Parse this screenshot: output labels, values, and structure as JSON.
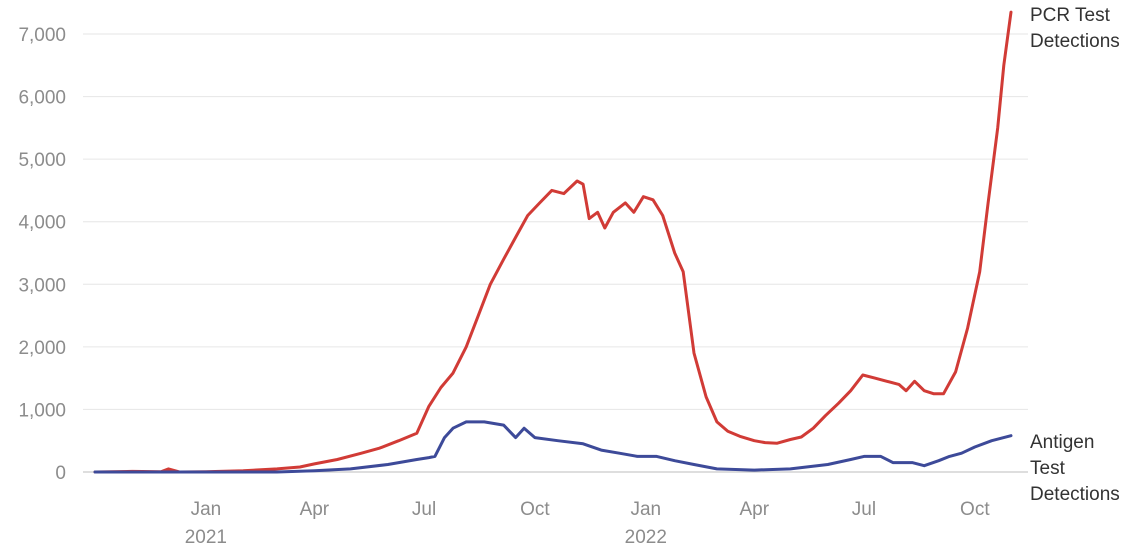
{
  "chart_data": {
    "type": "line",
    "title": "",
    "xlabel": "",
    "ylabel": "",
    "ylim": [
      0,
      7000
    ],
    "grid": "horizontal",
    "legend": "direct labels at right end of lines",
    "y_ticks": [
      "0",
      "1,000",
      "2,000",
      "3,000",
      "4,000",
      "5,000",
      "6,000",
      "7,000"
    ],
    "y_tick_values": [
      0,
      1000,
      2000,
      3000,
      4000,
      5000,
      6000,
      7000
    ],
    "x_ticks": [
      {
        "label": "Jan",
        "sub": "2021",
        "date": "2021-01-01"
      },
      {
        "label": "Apr",
        "sub": "",
        "date": "2021-04-01"
      },
      {
        "label": "Jul",
        "sub": "",
        "date": "2021-07-01"
      },
      {
        "label": "Oct",
        "sub": "",
        "date": "2021-10-01"
      },
      {
        "label": "Jan",
        "sub": "2022",
        "date": "2022-01-01"
      },
      {
        "label": "Apr",
        "sub": "",
        "date": "2022-04-01"
      },
      {
        "label": "Jul",
        "sub": "",
        "date": "2022-07-01"
      },
      {
        "label": "Oct",
        "sub": "",
        "date": "2022-10-01"
      }
    ],
    "x_range": [
      "2020-10-01",
      "2022-10-31"
    ],
    "series": [
      {
        "name": "PCR Test Detections",
        "label_lines": [
          "PCR Test",
          "Detections"
        ],
        "color": "#d13b36",
        "points": [
          [
            "2020-10-01",
            0
          ],
          [
            "2020-11-01",
            10
          ],
          [
            "2020-11-25",
            5
          ],
          [
            "2020-12-01",
            50
          ],
          [
            "2020-12-10",
            0
          ],
          [
            "2021-01-01",
            5
          ],
          [
            "2021-02-01",
            20
          ],
          [
            "2021-03-01",
            50
          ],
          [
            "2021-03-20",
            80
          ],
          [
            "2021-04-01",
            130
          ],
          [
            "2021-04-20",
            200
          ],
          [
            "2021-05-10",
            300
          ],
          [
            "2021-05-25",
            380
          ],
          [
            "2021-06-10",
            500
          ],
          [
            "2021-06-25",
            620
          ],
          [
            "2021-07-05",
            1050
          ],
          [
            "2021-07-15",
            1350
          ],
          [
            "2021-07-25",
            1580
          ],
          [
            "2021-08-05",
            2000
          ],
          [
            "2021-08-15",
            2500
          ],
          [
            "2021-08-25",
            3000
          ],
          [
            "2021-09-05",
            3400
          ],
          [
            "2021-09-15",
            3750
          ],
          [
            "2021-09-25",
            4100
          ],
          [
            "2021-10-05",
            4300
          ],
          [
            "2021-10-15",
            4500
          ],
          [
            "2021-10-25",
            4450
          ],
          [
            "2021-11-05",
            4650
          ],
          [
            "2021-11-10",
            4600
          ],
          [
            "2021-11-15",
            4050
          ],
          [
            "2021-11-22",
            4150
          ],
          [
            "2021-11-28",
            3900
          ],
          [
            "2021-12-05",
            4150
          ],
          [
            "2021-12-15",
            4300
          ],
          [
            "2021-12-22",
            4150
          ],
          [
            "2021-12-30",
            4400
          ],
          [
            "2022-01-07",
            4350
          ],
          [
            "2022-01-15",
            4100
          ],
          [
            "2022-01-25",
            3500
          ],
          [
            "2022-02-01",
            3200
          ],
          [
            "2022-02-10",
            1900
          ],
          [
            "2022-02-20",
            1200
          ],
          [
            "2022-03-01",
            800
          ],
          [
            "2022-03-10",
            650
          ],
          [
            "2022-03-20",
            570
          ],
          [
            "2022-04-01",
            500
          ],
          [
            "2022-04-10",
            470
          ],
          [
            "2022-04-20",
            460
          ],
          [
            "2022-05-01",
            520
          ],
          [
            "2022-05-10",
            560
          ],
          [
            "2022-05-20",
            700
          ],
          [
            "2022-05-30",
            900
          ],
          [
            "2022-06-10",
            1100
          ],
          [
            "2022-06-20",
            1300
          ],
          [
            "2022-06-30",
            1550
          ],
          [
            "2022-07-10",
            1500
          ],
          [
            "2022-07-20",
            1450
          ],
          [
            "2022-07-30",
            1400
          ],
          [
            "2022-08-05",
            1300
          ],
          [
            "2022-08-12",
            1450
          ],
          [
            "2022-08-20",
            1300
          ],
          [
            "2022-08-28",
            1250
          ],
          [
            "2022-09-05",
            1250
          ],
          [
            "2022-09-15",
            1600
          ],
          [
            "2022-09-25",
            2300
          ],
          [
            "2022-10-05",
            3200
          ],
          [
            "2022-10-12",
            4300
          ],
          [
            "2022-10-20",
            5500
          ],
          [
            "2022-10-25",
            6500
          ],
          [
            "2022-10-31",
            7350
          ]
        ]
      },
      {
        "name": "Antigen Test Detections",
        "label_lines": [
          "Antigen",
          "Test",
          "Detections"
        ],
        "color": "#3d4a99",
        "points": [
          [
            "2020-10-01",
            0
          ],
          [
            "2021-01-01",
            0
          ],
          [
            "2021-03-01",
            0
          ],
          [
            "2021-04-01",
            20
          ],
          [
            "2021-05-01",
            50
          ],
          [
            "2021-06-01",
            120
          ],
          [
            "2021-06-25",
            200
          ],
          [
            "2021-07-05",
            230
          ],
          [
            "2021-07-10",
            250
          ],
          [
            "2021-07-18",
            550
          ],
          [
            "2021-07-25",
            700
          ],
          [
            "2021-08-05",
            800
          ],
          [
            "2021-08-20",
            800
          ],
          [
            "2021-09-05",
            750
          ],
          [
            "2021-09-15",
            550
          ],
          [
            "2021-09-22",
            700
          ],
          [
            "2021-10-01",
            550
          ],
          [
            "2021-10-20",
            500
          ],
          [
            "2021-11-10",
            450
          ],
          [
            "2021-11-25",
            350
          ],
          [
            "2021-12-10",
            300
          ],
          [
            "2021-12-25",
            250
          ],
          [
            "2022-01-10",
            250
          ],
          [
            "2022-01-25",
            180
          ],
          [
            "2022-02-10",
            120
          ],
          [
            "2022-03-01",
            50
          ],
          [
            "2022-04-01",
            30
          ],
          [
            "2022-05-01",
            50
          ],
          [
            "2022-06-01",
            120
          ],
          [
            "2022-06-20",
            200
          ],
          [
            "2022-07-01",
            250
          ],
          [
            "2022-07-15",
            250
          ],
          [
            "2022-07-25",
            150
          ],
          [
            "2022-08-10",
            150
          ],
          [
            "2022-08-20",
            100
          ],
          [
            "2022-09-01",
            180
          ],
          [
            "2022-09-10",
            250
          ],
          [
            "2022-09-20",
            300
          ],
          [
            "2022-10-01",
            400
          ],
          [
            "2022-10-15",
            500
          ],
          [
            "2022-10-31",
            580
          ]
        ]
      }
    ]
  }
}
